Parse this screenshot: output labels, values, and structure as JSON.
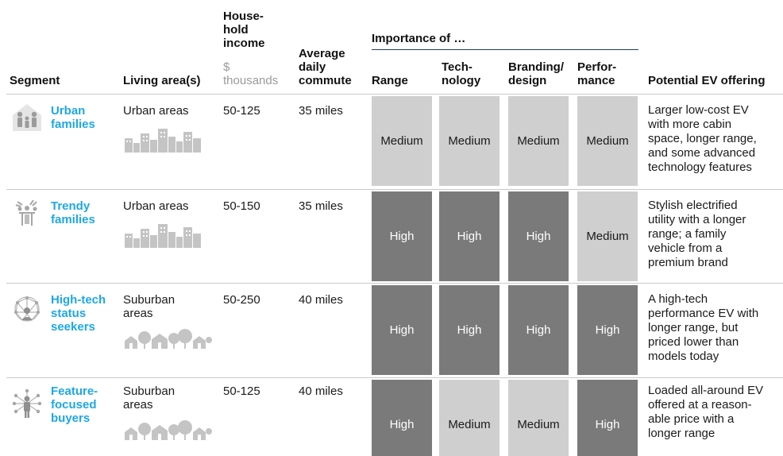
{
  "header": {
    "segment": "Segment",
    "living_area": "Living area(s)",
    "income_line1": "House-",
    "income_line2": "hold",
    "income_line3": "income",
    "income_unit1": "$",
    "income_unit2": "thousands",
    "commute_line1": "Average",
    "commute_line2": "daily",
    "commute_line3": "commute",
    "importance": "Importance of …",
    "range": "Range",
    "tech_line1": "Tech-",
    "tech_line2": "nology",
    "brand_line1": "Branding/",
    "brand_line2": "design",
    "perf_line1": "Perfor-",
    "perf_line2": "mance",
    "offering": "Potential EV offering"
  },
  "rows": [
    {
      "icon": "family-icon",
      "name_line1": "Urban",
      "name_line2": "families",
      "name_line3": "",
      "area_line1": "Urban areas",
      "area_line2": "",
      "area_icon": "city-icon",
      "income": "50-125",
      "commute": "35 miles",
      "ratings": [
        "Medium",
        "Medium",
        "Medium",
        "Medium"
      ],
      "offer": [
        "Larger low-cost EV",
        "with more cabin",
        "space, longer range,",
        "and some advanced",
        "technology features"
      ]
    },
    {
      "icon": "trendy-family-icon",
      "name_line1": "Trendy",
      "name_line2": "families",
      "name_line3": "",
      "area_line1": "Urban areas",
      "area_line2": "",
      "area_icon": "city-icon",
      "income": "50-150",
      "commute": "35 miles",
      "ratings": [
        "High",
        "High",
        "High",
        "Medium"
      ],
      "offer": [
        "Stylish electrified",
        "utility with a longer",
        "range; a family",
        "vehicle from a",
        "premium brand"
      ]
    },
    {
      "icon": "network-person-icon",
      "name_line1": "High-tech",
      "name_line2": "status",
      "name_line3": "seekers",
      "area_line1": "Suburban",
      "area_line2": "areas",
      "area_icon": "suburb-icon",
      "income": "50-250",
      "commute": "40 miles",
      "ratings": [
        "High",
        "High",
        "High",
        "High"
      ],
      "offer": [
        "A high-tech",
        "performance EV with",
        "longer range, but",
        "priced lower than",
        "models today"
      ]
    },
    {
      "icon": "feature-person-icon",
      "name_line1": "Feature-",
      "name_line2": "focused",
      "name_line3": "buyers",
      "area_line1": "Suburban",
      "area_line2": "areas",
      "area_icon": "suburb-icon",
      "income": "50-125",
      "commute": "40 miles",
      "ratings": [
        "High",
        "Medium",
        "Medium",
        "High"
      ],
      "offer": [
        "Loaded all-around EV",
        "offered at a reason-",
        "able price with a",
        "longer range"
      ]
    }
  ],
  "colors": {
    "high": "#7a7a7a",
    "medium": "#cfcfcf",
    "segment_name": "#1ea7e6",
    "rule": "#1f3b73"
  }
}
